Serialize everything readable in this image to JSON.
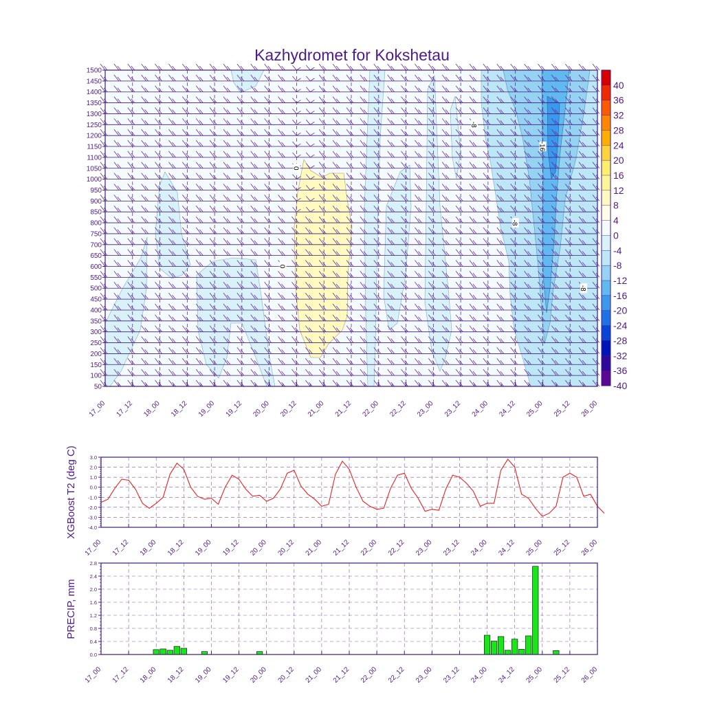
{
  "chart_data": [
    {
      "type": "heatmap",
      "title": "Kazhydromet for Kokshetau",
      "xlabel": "",
      "ylabel": "",
      "x_ticks": [
        "17_00",
        "17_12",
        "18_00",
        "18_12",
        "19_00",
        "19_12",
        "20_00",
        "20_12",
        "21_00",
        "21_12",
        "22_00",
        "22_12",
        "23_00",
        "23_12",
        "24_00",
        "24_12",
        "25_00",
        "25_12",
        "26_00"
      ],
      "y_ticks": [
        1500,
        1450,
        1400,
        1350,
        1300,
        1250,
        1200,
        1150,
        1100,
        1050,
        1000,
        950,
        900,
        850,
        800,
        750,
        700,
        650,
        600,
        550,
        500,
        450,
        400,
        350,
        300,
        250,
        200,
        150,
        100,
        50
      ],
      "ylim": [
        50,
        1500
      ],
      "colorbar_levels": [
        "40",
        "36",
        "32",
        "28",
        "24",
        "20",
        "16",
        "12",
        "8",
        "4",
        "0",
        "-4",
        "-8",
        "-12",
        "-16",
        "-20",
        "-24",
        "-28",
        "-32",
        "-36",
        "-40"
      ],
      "colorbar_colors": [
        "#d60000",
        "#ef2b00",
        "#fa5a00",
        "#fd8700",
        "#fdae00",
        "#fcd43c",
        "#fdee6e",
        "#fdf697",
        "#fffbc0",
        "#fffde6",
        "#f5fafe",
        "#d9f2fa",
        "#bde6f6",
        "#96d3f2",
        "#62b8f0",
        "#3b98ec",
        "#1e72e4",
        "#0a44d4",
        "#0014b8",
        "#2d0a9c",
        "#5b0894"
      ],
      "contour_labels": [
        {
          "text": "0",
          "x_data": "20_12",
          "y_data": 1050
        },
        {
          "text": "0",
          "x_data": "20_06",
          "y_data": 600
        },
        {
          "text": "-8",
          "x_data": "23_18",
          "y_data": 1250
        },
        {
          "text": "-16",
          "x_data": "25_00",
          "y_data": 1150
        },
        {
          "text": "-8",
          "x_data": "24_12",
          "y_data": 800
        },
        {
          "text": "-8",
          "x_data": "25_18",
          "y_data": 500
        }
      ]
    },
    {
      "type": "line",
      "title": "",
      "ylabel": "XGBoost T2 (deg C)",
      "xlabel": "",
      "ylim": [
        -4.0,
        3.0
      ],
      "y_ticks": [
        "3.0",
        "2.0",
        "1.0",
        "0.0",
        "-1.0",
        "-2.0",
        "-3.0",
        "-4.0"
      ],
      "x_ticks": [
        "17_00",
        "17_12",
        "18_00",
        "18_12",
        "19_00",
        "19_12",
        "20_00",
        "20_12",
        "21_00",
        "21_12",
        "22_00",
        "22_12",
        "23_00",
        "23_12",
        "24_00",
        "24_12",
        "25_00",
        "25_12",
        "26_00"
      ],
      "series": [
        {
          "name": "T2",
          "color": "#e8201c",
          "values": [
            -1.5,
            -1.2,
            -0.1,
            0.8,
            0.7,
            -0.2,
            -1.6,
            -2.1,
            -1.6,
            -1.0,
            1.3,
            2.4,
            1.8,
            0.0,
            -0.9,
            -1.2,
            -1.1,
            -1.7,
            0.0,
            1.2,
            0.8,
            -0.2,
            -0.9,
            -0.8,
            -1.4,
            -1.1,
            -0.2,
            1.4,
            1.7,
            0.1,
            -0.7,
            -1.2,
            -1.9,
            -1.7,
            1.3,
            2.6,
            1.8,
            0.0,
            -1.4,
            -1.9,
            -2.2,
            -2.1,
            -0.1,
            1.2,
            1.4,
            -0.1,
            -1.1,
            -2.4,
            -2.2,
            -2.3,
            -0.2,
            1.2,
            1.0,
            0.4,
            -0.4,
            -1.9,
            -1.6,
            -1.6,
            1.7,
            2.8,
            2.0,
            -0.7,
            -1.1,
            -2.1,
            -2.9,
            -2.6,
            -1.9,
            1.0,
            1.4,
            1.0,
            -0.9,
            -0.7,
            -1.9,
            -2.6
          ]
        }
      ]
    },
    {
      "type": "bar",
      "title": "",
      "ylabel": "PRECIP, mm",
      "xlabel": "",
      "ylim": [
        0.0,
        2.8
      ],
      "y_ticks": [
        "2.8",
        "2.4",
        "2.0",
        "1.6",
        "1.2",
        "0.8",
        "0.4",
        "0.0"
      ],
      "x_ticks": [
        "17_00",
        "17_12",
        "18_00",
        "18_12",
        "19_00",
        "19_12",
        "20_00",
        "20_12",
        "21_00",
        "21_12",
        "22_00",
        "22_12",
        "23_00",
        "23_12",
        "24_00",
        "24_12",
        "25_00",
        "25_12",
        "26_00"
      ],
      "bar_color": "#19e619",
      "bars": [
        {
          "x": "18_00",
          "value": 0.15
        },
        {
          "x": "18_03",
          "value": 0.17
        },
        {
          "x": "18_06",
          "value": 0.13
        },
        {
          "x": "18_09",
          "value": 0.25
        },
        {
          "x": "18_12",
          "value": 0.19
        },
        {
          "x": "18_21",
          "value": 0.09
        },
        {
          "x": "19_21",
          "value": 0.09
        },
        {
          "x": "24_00",
          "value": 0.59
        },
        {
          "x": "24_03",
          "value": 0.41
        },
        {
          "x": "24_06",
          "value": 0.55
        },
        {
          "x": "24_09",
          "value": 0.13
        },
        {
          "x": "24_12",
          "value": 0.47
        },
        {
          "x": "24_15",
          "value": 0.16
        },
        {
          "x": "24_18",
          "value": 0.57
        },
        {
          "x": "24_21",
          "value": 2.7
        },
        {
          "x": "25_06",
          "value": 0.12
        }
      ]
    }
  ]
}
